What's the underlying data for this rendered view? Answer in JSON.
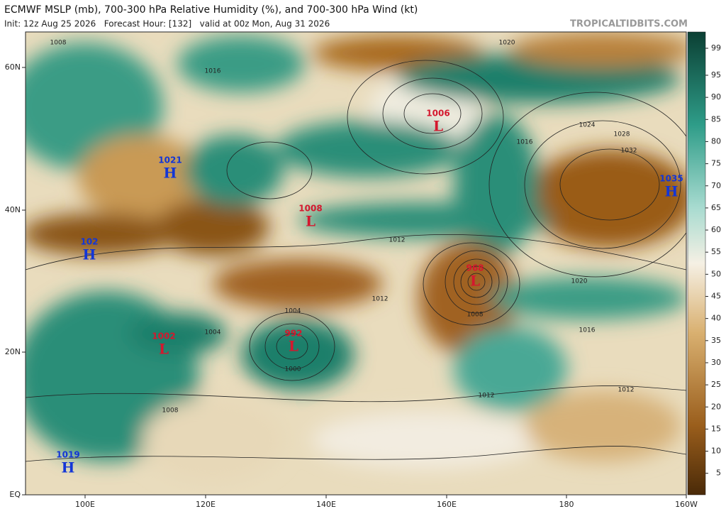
{
  "header": {
    "title": "ECMWF MSLP (mb), 700-300 hPa Relative Humidity (%), and 700-300 hPa Wind (kt)",
    "subtitle": "Init: 12z Aug 25 2026   Forecast Hour: [132]   valid at 00z Mon, Aug 31 2026",
    "watermark": "TROPICALTIDBITS.COM"
  },
  "map": {
    "lat_labels": [
      "60N",
      "40N",
      "20N",
      "EQ"
    ],
    "lon_labels": [
      "100E",
      "120E",
      "140E",
      "160E",
      "180",
      "160W"
    ],
    "centers": [
      {
        "symbol": "H",
        "pressure": "1021"
      },
      {
        "symbol": "H",
        "pressure": "102"
      },
      {
        "symbol": "L",
        "pressure": "1008"
      },
      {
        "symbol": "L",
        "pressure": "1006"
      },
      {
        "symbol": "L",
        "pressure": "968"
      },
      {
        "symbol": "L",
        "pressure": "992"
      },
      {
        "symbol": "L",
        "pressure": "1002"
      },
      {
        "symbol": "H",
        "pressure": "1035"
      },
      {
        "symbol": "H",
        "pressure": "1019"
      }
    ],
    "isobar_labels": [
      "1008",
      "1016",
      "1020",
      "1024",
      "1028",
      "1032",
      "1012",
      "1016",
      "1004",
      "1000",
      "1008",
      "1012",
      "1012",
      "1012",
      "1016",
      "1020",
      "1008",
      "1004"
    ]
  },
  "colorbar": {
    "labels": [
      "99",
      "95",
      "90",
      "85",
      "80",
      "75",
      "70",
      "65",
      "60",
      "55",
      "50",
      "45",
      "40",
      "35",
      "30",
      "25",
      "20",
      "15",
      "10",
      "5"
    ]
  }
}
